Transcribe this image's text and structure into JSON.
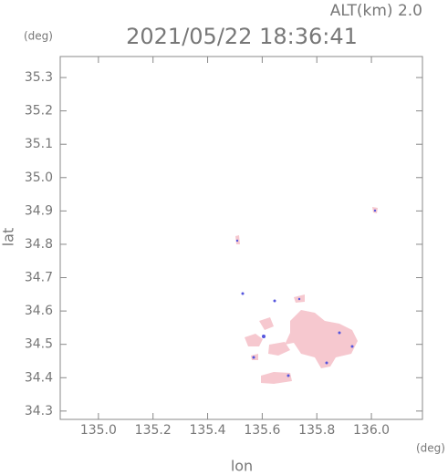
{
  "chart_data": {
    "type": "map",
    "title": "2021/05/22 18:36:41",
    "altitude_label": "ALT(km) 2.0",
    "y_unit": "(deg)",
    "x_unit": "(deg)",
    "xlabel": "lon",
    "ylabel": "lat",
    "xlim": [
      134.86,
      136.187
    ],
    "ylim": [
      34.275,
      35.363
    ],
    "xticks": [
      {
        "value": 135.0,
        "label": "135.0"
      },
      135.2,
      135.4,
      135.6,
      135.8,
      {
        "value": 136.0,
        "label": "136.0"
      }
    ],
    "yticks": [
      34.3,
      34.4,
      34.5,
      34.6,
      34.7,
      34.8,
      34.9,
      {
        "value": 35.0,
        "label": "35.0"
      },
      35.1,
      35.2,
      35.3
    ]
  }
}
